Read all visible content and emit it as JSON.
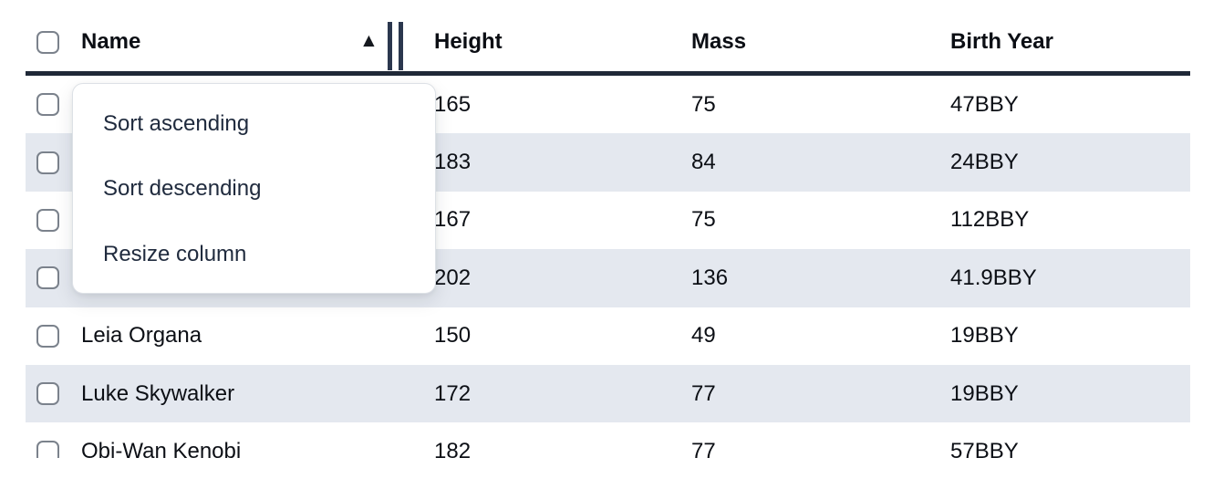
{
  "table": {
    "columns": [
      {
        "label": "Name",
        "sorted": "ascending"
      },
      {
        "label": "Height"
      },
      {
        "label": "Mass"
      },
      {
        "label": "Birth Year"
      }
    ],
    "rows": [
      {
        "name": "",
        "height": "165",
        "mass": "75",
        "birth_year": "47BBY"
      },
      {
        "name": "",
        "height": "183",
        "mass": "84",
        "birth_year": "24BBY"
      },
      {
        "name": "",
        "height": "167",
        "mass": "75",
        "birth_year": "112BBY"
      },
      {
        "name": "",
        "height": "202",
        "mass": "136",
        "birth_year": "41.9BBY"
      },
      {
        "name": "Leia Organa",
        "height": "150",
        "mass": "49",
        "birth_year": "19BBY"
      },
      {
        "name": "Luke Skywalker",
        "height": "172",
        "mass": "77",
        "birth_year": "19BBY"
      },
      {
        "name": "Obi-Wan Kenobi",
        "height": "182",
        "mass": "77",
        "birth_year": "57BBY"
      }
    ]
  },
  "menu": {
    "items": [
      {
        "label": "Sort ascending"
      },
      {
        "label": "Sort descending"
      },
      {
        "label": "Resize column"
      }
    ]
  },
  "icons": {
    "sort_ascending": "▲"
  },
  "colors": {
    "header_underline": "#1f2837",
    "row_stripe": "#e4e8ef",
    "resize_handle": "#2b374e",
    "menu_text": "#202b3e"
  }
}
